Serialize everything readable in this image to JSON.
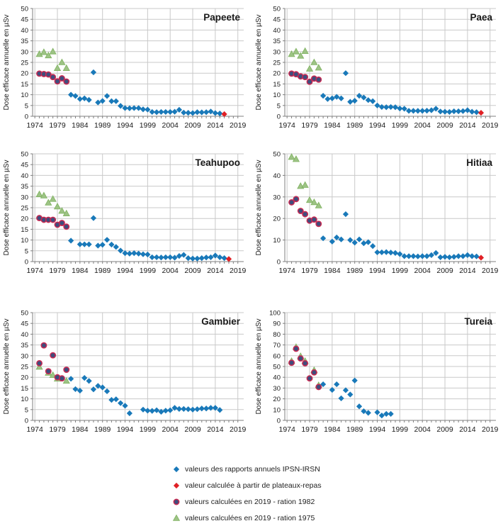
{
  "axis": {
    "xticks": [
      1974,
      1979,
      1984,
      1989,
      1994,
      1999,
      2004,
      2009,
      2014,
      2019
    ],
    "xrange": [
      1973.5,
      2020.3
    ]
  },
  "series_styles": {
    "ipsn": {
      "marker": "diamond",
      "fill": "#1979b9"
    },
    "plateaux": {
      "marker": "diamond",
      "fill": "#e02126"
    },
    "ration1982": {
      "marker": "circle",
      "fill": "#3f4d7d",
      "stroke": "#c92a52"
    },
    "ration1975": {
      "marker": "triangle",
      "fill": "#9dc385",
      "stroke": "#7fb260"
    }
  },
  "legend": {
    "items": [
      {
        "series": "ipsn",
        "label": "valeurs des rapports annuels IPSN-IRSN"
      },
      {
        "series": "plateaux",
        "label": "valeur calculée à partir de plateaux-repas"
      },
      {
        "series": "ration1982",
        "label": "valeurs calculées en 2019 - ration 1982"
      },
      {
        "series": "ration1975",
        "label": "valeurs calculées en 2019 - ration 1975"
      }
    ]
  },
  "chart_data": [
    {
      "type": "scatter",
      "title": "Papeete",
      "ylabel": "Dose efficace annuelle en µSv",
      "ylim": [
        0,
        50
      ],
      "ystep": 5,
      "grid": true,
      "series": [
        {
          "name": "ration1975",
          "x": [
            1975,
            1976,
            1977,
            1978,
            1979,
            1980,
            1981
          ],
          "y": [
            28.8,
            29.7,
            28.2,
            30,
            22.3,
            25,
            22.3
          ]
        },
        {
          "name": "ration1982",
          "x": [
            1975,
            1976,
            1977,
            1978,
            1979,
            1980,
            1981
          ],
          "y": [
            19.8,
            19.6,
            19.4,
            18.2,
            16.2,
            17.6,
            16.1
          ]
        },
        {
          "name": "ipsn",
          "x": [
            1982,
            1983,
            1984,
            1985,
            1986,
            1987,
            1988,
            1989,
            1990,
            1991,
            1992,
            1993,
            1994,
            1995,
            1996,
            1997,
            1998,
            1999,
            2000,
            2001,
            2002,
            2003,
            2004,
            2005,
            2006,
            2007,
            2008,
            2009,
            2010,
            2011,
            2012,
            2013,
            2014,
            2015
          ],
          "y": [
            10,
            9.4,
            8,
            8.3,
            7.6,
            20.4,
            6.4,
            7.1,
            9.4,
            7,
            7,
            4.8,
            3.8,
            3.7,
            3.8,
            3.8,
            3.2,
            3.1,
            2,
            1.9,
            2,
            2,
            2,
            2.1,
            3,
            1.7,
            1.6,
            1.5,
            1.9,
            1.8,
            1.9,
            2.2,
            1.5,
            1.3
          ]
        },
        {
          "name": "plateaux",
          "x": [
            2016
          ],
          "y": [
            1
          ]
        }
      ]
    },
    {
      "type": "scatter",
      "title": "Paea",
      "ylabel": "Dose efficace annuelle en µSv",
      "ylim": [
        0,
        50
      ],
      "ystep": 5,
      "grid": true,
      "series": [
        {
          "name": "ration1975",
          "x": [
            1975,
            1976,
            1977,
            1978,
            1979,
            1980,
            1981
          ],
          "y": [
            28.8,
            30,
            28,
            30.2,
            22,
            25,
            22.5
          ]
        },
        {
          "name": "ration1982",
          "x": [
            1975,
            1976,
            1977,
            1978,
            1979,
            1980,
            1981
          ],
          "y": [
            19.8,
            19.5,
            18.5,
            18.2,
            16,
            17.5,
            17
          ]
        },
        {
          "name": "ipsn",
          "x": [
            1982,
            1983,
            1984,
            1985,
            1986,
            1987,
            1988,
            1989,
            1990,
            1991,
            1992,
            1993,
            1994,
            1995,
            1996,
            1997,
            1998,
            1999,
            2000,
            2001,
            2002,
            2003,
            2004,
            2005,
            2006,
            2007,
            2008,
            2009,
            2010,
            2011,
            2012,
            2013,
            2014,
            2015,
            2016
          ],
          "y": [
            9.5,
            8,
            8.3,
            9,
            8.3,
            20,
            6.7,
            7.2,
            9.5,
            8.7,
            7.5,
            7,
            5,
            4.3,
            4.2,
            4.3,
            4.2,
            3.6,
            3.5,
            2.5,
            2.5,
            2.5,
            2.5,
            2.6,
            2.8,
            3.5,
            2.2,
            2.1,
            2,
            2.3,
            2.3,
            2.4,
            2.8,
            2.1,
            1.9
          ]
        },
        {
          "name": "plateaux",
          "x": [
            2017
          ],
          "y": [
            1.6
          ]
        }
      ]
    },
    {
      "type": "scatter",
      "title": "Teahupoo",
      "ylabel": "Dose efficace annuelle en µSv",
      "ylim": [
        0,
        50
      ],
      "ystep": 5,
      "grid": true,
      "series": [
        {
          "name": "ration1975",
          "x": [
            1975,
            1976,
            1977,
            1978,
            1979,
            1980,
            1981
          ],
          "y": [
            31.2,
            30.6,
            27.3,
            29,
            25.5,
            23.5,
            22.3
          ]
        },
        {
          "name": "ration1982",
          "x": [
            1975,
            1976,
            1977,
            1978,
            1979,
            1980,
            1981
          ],
          "y": [
            20.2,
            19.4,
            19.4,
            19.4,
            17.1,
            17.9,
            16.2
          ]
        },
        {
          "name": "ipsn",
          "x": [
            1982,
            1984,
            1985,
            1986,
            1987,
            1988,
            1989,
            1990,
            1991,
            1992,
            1993,
            1994,
            1995,
            1996,
            1997,
            1998,
            1999,
            2000,
            2001,
            2002,
            2003,
            2004,
            2005,
            2006,
            2007,
            2008,
            2009,
            2010,
            2011,
            2012,
            2013,
            2014,
            2015,
            2016
          ],
          "y": [
            9.7,
            8,
            8,
            8,
            20.2,
            7.4,
            7.8,
            10.1,
            7.9,
            6.8,
            5.1,
            3.9,
            3.7,
            3.9,
            3.7,
            3.4,
            3.3,
            2,
            2,
            1.9,
            2,
            2,
            1.8,
            2.6,
            3.1,
            1.6,
            1.4,
            1.4,
            1.6,
            1.9,
            2,
            2.8,
            2,
            1.6
          ]
        },
        {
          "name": "plateaux",
          "x": [
            2017
          ],
          "y": [
            1.2
          ]
        }
      ]
    },
    {
      "type": "scatter",
      "title": "Hitiaa",
      "ylabel": "Dose efficace annuelle en µSv",
      "ylim": [
        0,
        50
      ],
      "ystep": 10,
      "grid": true,
      "series": [
        {
          "name": "ration1975",
          "x": [
            1975,
            1976,
            1977,
            1978,
            1979,
            1980,
            1981
          ],
          "y": [
            48.5,
            47.5,
            35,
            35.5,
            28.5,
            27.5,
            26
          ]
        },
        {
          "name": "ration1982",
          "x": [
            1975,
            1976,
            1977,
            1978,
            1979,
            1980,
            1981
          ],
          "y": [
            27.5,
            29,
            23.5,
            22,
            19,
            19.5,
            17.5
          ]
        },
        {
          "name": "ipsn",
          "x": [
            1982,
            1984,
            1985,
            1986,
            1987,
            1988,
            1989,
            1990,
            1991,
            1992,
            1993,
            1994,
            1995,
            1996,
            1997,
            1998,
            1999,
            2000,
            2001,
            2002,
            2003,
            2004,
            2005,
            2006,
            2007,
            2008,
            2009,
            2010,
            2011,
            2012,
            2013,
            2014,
            2015,
            2016
          ],
          "y": [
            10.8,
            9.3,
            11.2,
            10.3,
            22,
            10,
            8.8,
            10.3,
            8.5,
            9,
            7.2,
            4.3,
            4.3,
            4.4,
            4.2,
            4,
            3.5,
            2.5,
            2.5,
            2.5,
            2.4,
            2.5,
            2.5,
            3,
            4,
            2,
            2.2,
            2,
            2.2,
            2.5,
            2.5,
            3,
            2.5,
            2.4
          ]
        },
        {
          "name": "plateaux",
          "x": [
            2017
          ],
          "y": [
            1.8
          ]
        }
      ]
    },
    {
      "type": "scatter",
      "title": "Gambier",
      "ylabel": "Dose efficace annuelle en µSv",
      "ylim": [
        0,
        50
      ],
      "ystep": 5,
      "grid": true,
      "series": [
        {
          "name": "ration1975",
          "x": [
            1975,
            1977,
            1978,
            1979,
            1981
          ],
          "y": [
            24.8,
            22,
            21,
            19.3,
            18.3
          ]
        },
        {
          "name": "ration1982",
          "x": [
            1975,
            1976,
            1977,
            1978,
            1979,
            1980,
            1981
          ],
          "y": [
            26.5,
            34.8,
            22.8,
            30.2,
            20,
            19.5,
            23.5
          ]
        },
        {
          "name": "ipsn",
          "x": [
            1982,
            1983,
            1984,
            1985,
            1986,
            1987,
            1988,
            1989,
            1990,
            1991,
            1992,
            1993,
            1994,
            1995,
            1998,
            1999,
            2000,
            2001,
            2002,
            2003,
            2004,
            2005,
            2006,
            2007,
            2008,
            2009,
            2010,
            2011,
            2012,
            2013,
            2014,
            2015
          ],
          "y": [
            19.3,
            14.5,
            13.8,
            19.7,
            18.3,
            14.4,
            16,
            15.3,
            13.5,
            9.5,
            9.8,
            8,
            6.8,
            3.3,
            5,
            4.5,
            4.4,
            4.7,
            4,
            4.5,
            4.7,
            5.8,
            5.3,
            5.3,
            5.2,
            5,
            5.2,
            5.5,
            5.5,
            5.8,
            5.8,
            4.8
          ]
        }
      ]
    },
    {
      "type": "scatter",
      "title": "Tureia",
      "ylabel": "Dose efficace annuelle en µSv",
      "ylim": [
        0,
        100
      ],
      "ystep": 10,
      "grid": true,
      "series": [
        {
          "name": "ration1975",
          "x": [
            1975,
            1976,
            1977,
            1978,
            1980,
            1981
          ],
          "y": [
            55,
            68,
            59.5,
            55,
            46.5,
            32.5
          ]
        },
        {
          "name": "ration1982",
          "x": [
            1975,
            1976,
            1977,
            1978,
            1979,
            1980,
            1981
          ],
          "y": [
            53.5,
            66.5,
            57.5,
            53,
            39,
            44.5,
            31
          ]
        },
        {
          "name": "ipsn",
          "x": [
            1982,
            1984,
            1985,
            1986,
            1987,
            1988,
            1989,
            1990,
            1991,
            1992,
            1994,
            1995,
            1996,
            1997
          ],
          "y": [
            33.5,
            28.3,
            33.5,
            20.5,
            28,
            24,
            37,
            13,
            8.5,
            7,
            7.5,
            4.5,
            6,
            6
          ]
        }
      ]
    }
  ]
}
